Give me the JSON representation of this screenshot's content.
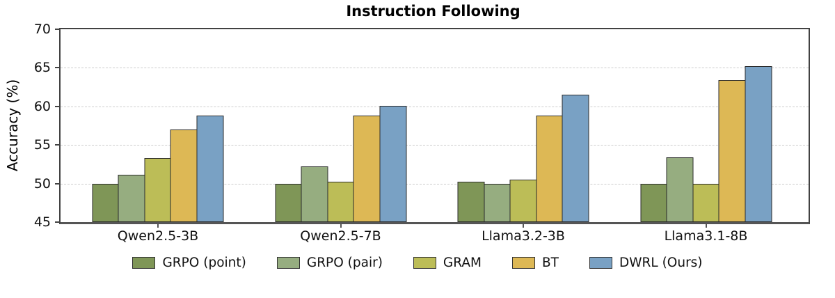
{
  "chart_data": {
    "type": "bar",
    "title": "Instruction Following",
    "xlabel": "",
    "ylabel": "Accuracy (%)",
    "categories": [
      "Qwen2.5-3B",
      "Qwen2.5-7B",
      "Llama3.2-3B",
      "Llama3.1-8B"
    ],
    "series": [
      {
        "name": "GRPO (point)",
        "color": "#7f9657",
        "values": [
          50.0,
          50.0,
          50.2,
          50.0
        ]
      },
      {
        "name": "GRPO (pair)",
        "color": "#96ad80",
        "values": [
          51.1,
          52.2,
          50.0,
          53.4
        ]
      },
      {
        "name": "GRAM",
        "color": "#bcbd57",
        "values": [
          53.3,
          50.2,
          50.5,
          50.0
        ]
      },
      {
        "name": "BT",
        "color": "#ddb855",
        "values": [
          57.0,
          58.8,
          58.8,
          63.4
        ]
      },
      {
        "name": "DWRL (Ours)",
        "color": "#79a1c4",
        "values": [
          58.8,
          60.1,
          61.5,
          65.2
        ]
      }
    ],
    "ylim": [
      45,
      70
    ],
    "yticks": [
      45,
      50,
      55,
      60,
      65,
      70
    ],
    "grid": "horizontal-dashed",
    "legend_position": "bottom-center",
    "bar_edge_color": "#2b2b2b"
  }
}
